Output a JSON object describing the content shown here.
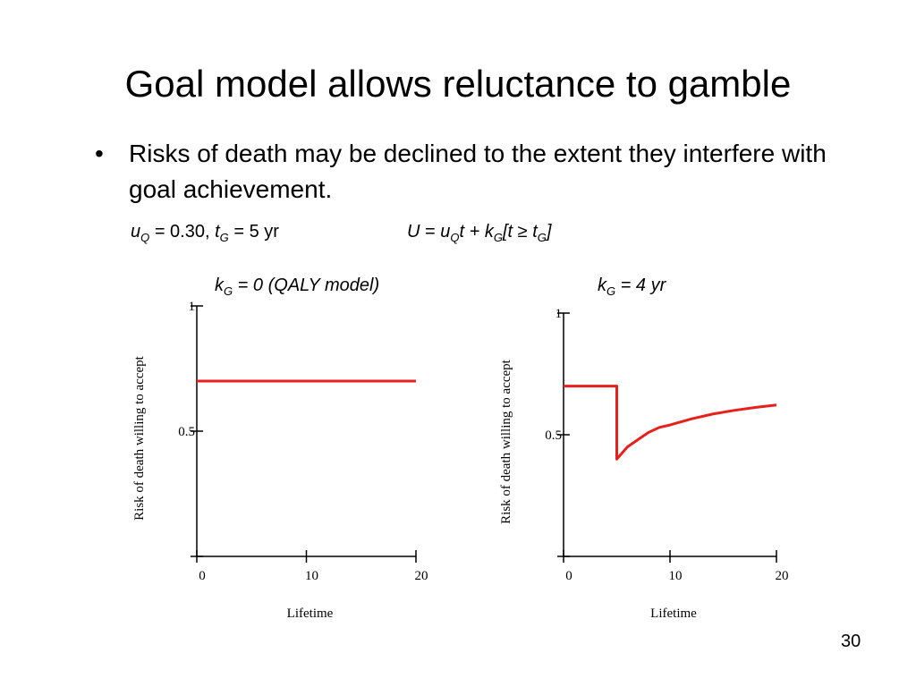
{
  "slide": {
    "title": "Goal model allows reluctance to gamble",
    "bullet": {
      "symbol": "•",
      "text": "Risks of death may be declined to the extent they interfere with goal achievement."
    },
    "params": {
      "uq_symbol": "u",
      "uq_sub": "Q",
      "uq_value": "= 0.30,",
      "tg_symbol": "t",
      "tg_sub": "G",
      "tg_value": "= 5 yr",
      "formula": {
        "lhs": "U",
        "eq": " = ",
        "u": "u",
        "u_sub": "Q",
        "t": "t + k",
        "k_sub": "G",
        "bracket": "[t ≥ t",
        "t_sub": "G",
        "close": "]"
      }
    },
    "page_number": "30"
  },
  "chart_data": [
    {
      "type": "line",
      "title_symbol": "k",
      "title_sub": "G",
      "title_rest": " = 0 (QALY model)",
      "xlabel": "Lifetime",
      "ylabel": "Risk of death willing to accept",
      "xlim": [
        0,
        20
      ],
      "ylim": [
        0,
        1
      ],
      "xticks": [
        0,
        10,
        20
      ],
      "xtick_labels": [
        "0",
        "10",
        "20"
      ],
      "yticks": [
        0,
        0.5,
        1
      ],
      "ytick_labels": [
        "",
        "0.5",
        "1"
      ],
      "grid": false,
      "color": "#e8201b",
      "series": [
        {
          "x": [
            0,
            20
          ],
          "y": [
            0.7,
            0.7
          ]
        }
      ]
    },
    {
      "type": "line",
      "title_symbol": "k",
      "title_sub": "G",
      "title_rest": " = 4 yr",
      "xlabel": "Lifetime",
      "ylabel": "Risk of death willing to accept",
      "xlim": [
        0,
        20
      ],
      "ylim": [
        0,
        1
      ],
      "xticks": [
        0,
        10,
        20
      ],
      "xtick_labels": [
        "0",
        "10",
        "20"
      ],
      "yticks": [
        0,
        0.5,
        1
      ],
      "ytick_labels": [
        "",
        "0.5",
        "1"
      ],
      "grid": false,
      "color": "#e8201b",
      "series": [
        {
          "x": [
            0,
            5,
            5,
            6,
            7,
            8,
            9,
            10,
            12,
            14,
            16,
            18,
            20
          ],
          "y": [
            0.7,
            0.7,
            0.4,
            0.45,
            0.48,
            0.51,
            0.53,
            0.54,
            0.565,
            0.585,
            0.6,
            0.612,
            0.622
          ]
        }
      ]
    }
  ]
}
